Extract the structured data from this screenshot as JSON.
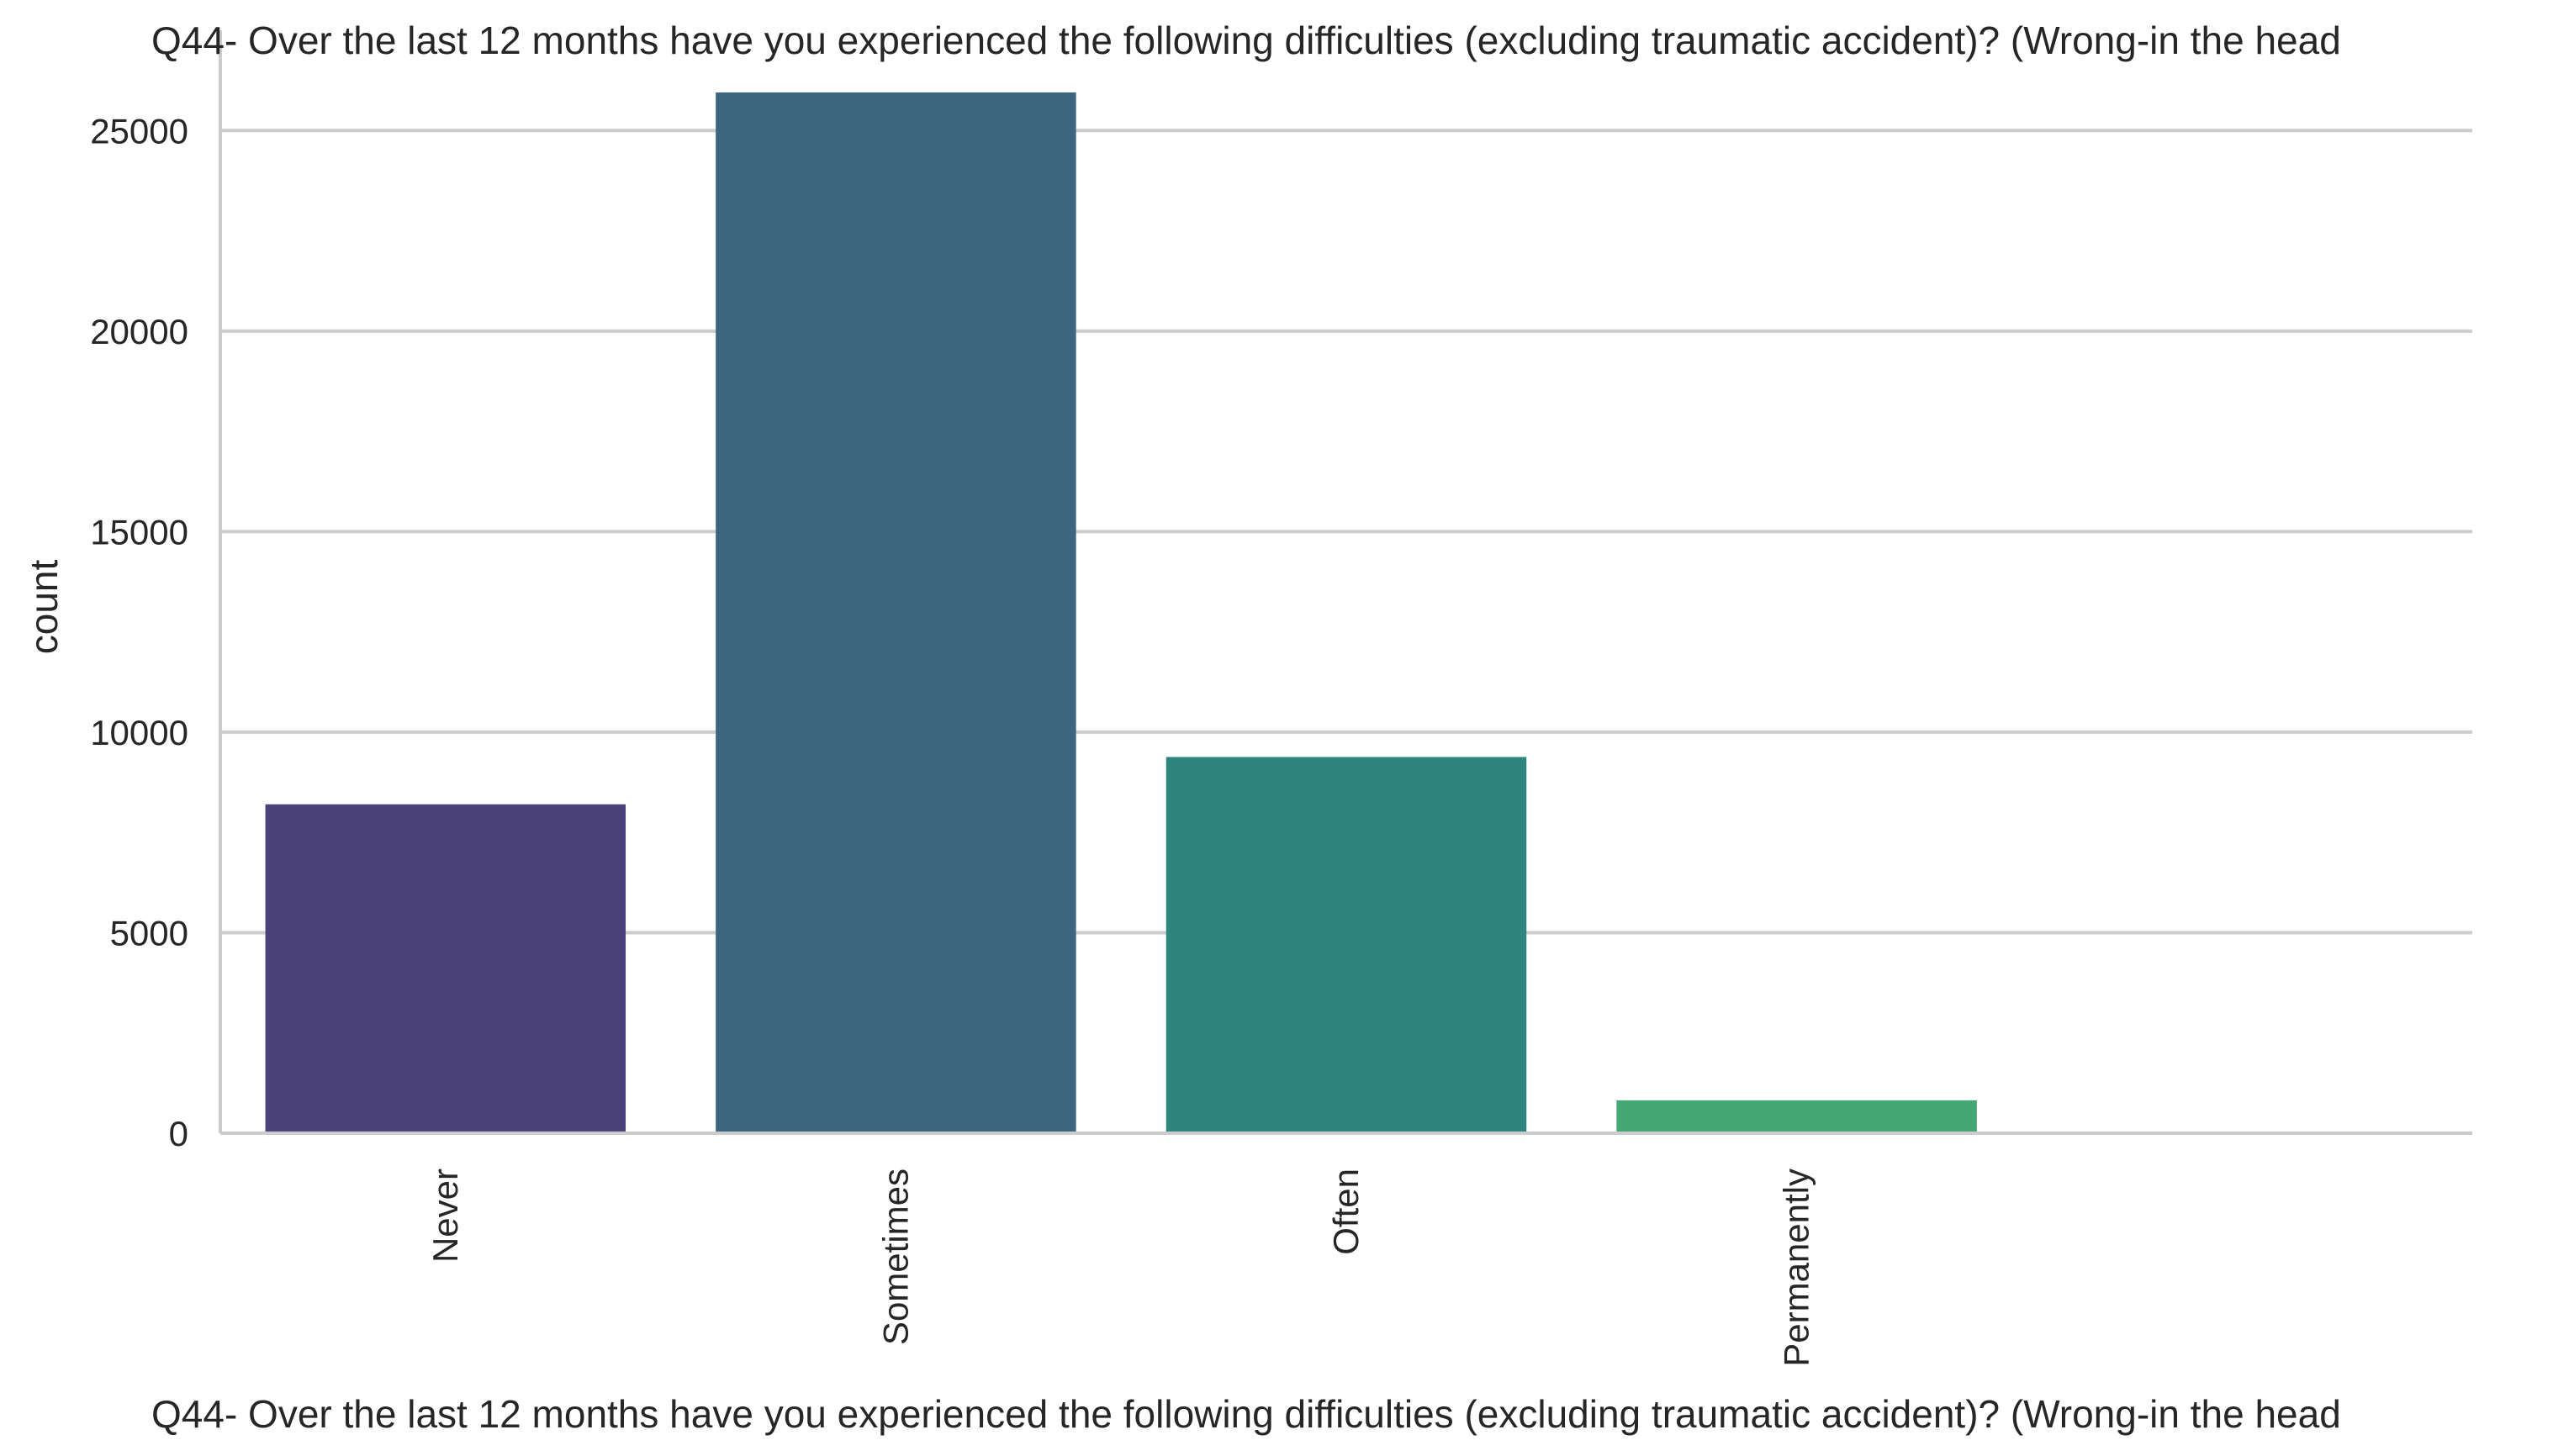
{
  "chart_data": {
    "type": "bar",
    "title": "Q44- Over the last 12 months have you experienced the following difficulties (excluding traumatic accident)? (Wrong-in the head",
    "xlabel": "Q44- Over the last 12 months have you experienced the following difficulties (excluding traumatic accident)? (Wrong-in the head",
    "ylabel": "count",
    "categories": [
      "Never",
      "Sometimes",
      "Often",
      "Permanently",
      ""
    ],
    "values": [
      8200,
      25950,
      9380,
      820,
      0
    ],
    "colors": [
      "#4a4278",
      "#3d6580",
      "#2f857d",
      "#45a774",
      "#7fc97f"
    ],
    "ylim": [
      0,
      27500
    ],
    "yticks": [
      0,
      5000,
      10000,
      15000,
      20000,
      25000
    ],
    "ytick_labels": [
      "0",
      "5000",
      "10000",
      "15000",
      "20000",
      "25000"
    ],
    "grid": true,
    "grid_axis": "y",
    "grid_color": "#cccccc",
    "axis_color": "#cccccc"
  }
}
